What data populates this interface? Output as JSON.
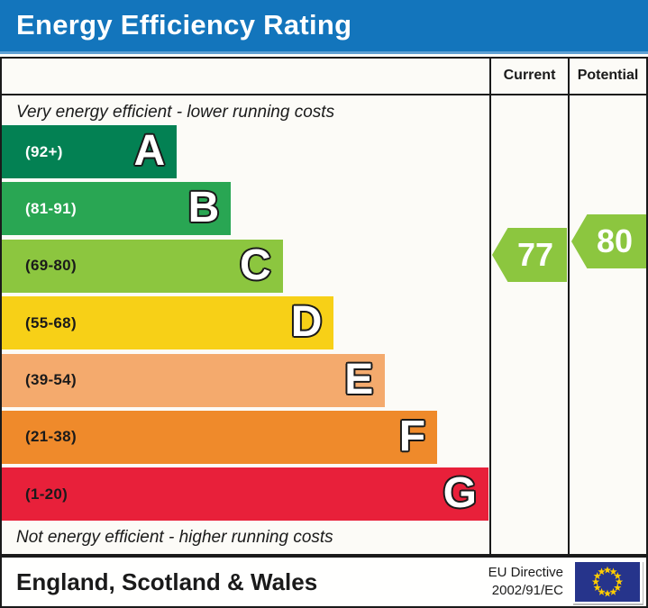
{
  "title": "Energy Efficiency Rating",
  "table": {
    "current_header": "Current",
    "potential_header": "Potential",
    "top_note": "Very energy efficient - lower running costs",
    "bottom_note": "Not energy efficient - higher running costs"
  },
  "footer": {
    "region": "England, Scotland & Wales",
    "directive_line1": "EU Directive",
    "directive_line2": "2002/91/EC",
    "flag_icon": "eu-flag"
  },
  "colors": {
    "title_bar_blue": "#1375bc",
    "title_stripe_blue": "#5d9fd3",
    "border_black": "#1a1a1a",
    "arrow_green": "#8cc63f",
    "flag_blue": "#26348b",
    "flag_star_yellow": "#ffcc00"
  },
  "chart_data": {
    "type": "bar",
    "orientation": "horizontal",
    "title": "Energy Efficiency Rating",
    "bands": [
      {
        "letter": "A",
        "range_label": "(92+)",
        "min": 92,
        "max": 100,
        "color": "#038153",
        "range_text_color": "#ffffff",
        "width_pct": 35.9
      },
      {
        "letter": "B",
        "range_label": "(81-91)",
        "min": 81,
        "max": 91,
        "color": "#29a653",
        "range_text_color": "#ffffff",
        "width_pct": 47.0
      },
      {
        "letter": "C",
        "range_label": "(69-80)",
        "min": 69,
        "max": 80,
        "color": "#8cc63f",
        "range_text_color": "#1a1a1a",
        "width_pct": 57.6
      },
      {
        "letter": "D",
        "range_label": "(55-68)",
        "min": 55,
        "max": 68,
        "color": "#f7d017",
        "range_text_color": "#1a1a1a",
        "width_pct": 68.1
      },
      {
        "letter": "E",
        "range_label": "(39-54)",
        "min": 39,
        "max": 54,
        "color": "#f4aa6d",
        "range_text_color": "#1a1a1a",
        "width_pct": 78.6
      },
      {
        "letter": "F",
        "range_label": "(21-38)",
        "min": 21,
        "max": 38,
        "color": "#ef8a2b",
        "range_text_color": "#1a1a1a",
        "width_pct": 89.3
      },
      {
        "letter": "G",
        "range_label": "(1-20)",
        "min": 1,
        "max": 20,
        "color": "#e8203a",
        "range_text_color": "#1a1a1a",
        "width_pct": 99.8
      }
    ],
    "current": {
      "value": 77,
      "band": "C",
      "color": "#8cc63f"
    },
    "potential": {
      "value": 80,
      "band": "C",
      "color": "#8cc63f"
    }
  }
}
